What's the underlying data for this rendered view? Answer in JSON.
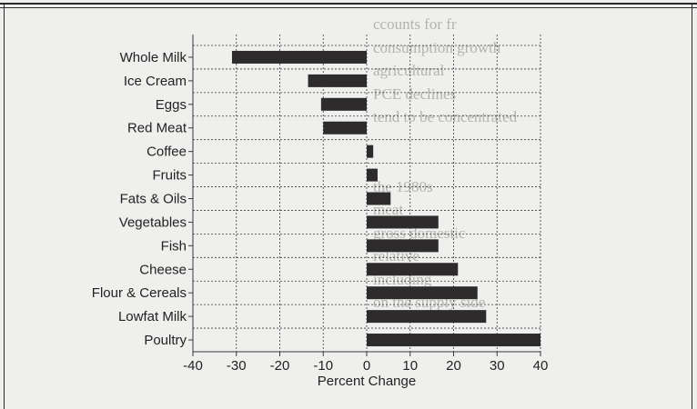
{
  "colors": {
    "bar": "#2e2b2c",
    "grid": "#3a3a3a",
    "text": "#222222",
    "background": "#efefed",
    "bleed_text": "#b3b3b0"
  },
  "bleed_through_lines": [
    "ccounts for fr",
    "consumption growth",
    "agricultural",
    "PCE declines",
    "tend to be concentrated",
    "",
    "",
    "the 1980s",
    "meat",
    "gross domestic",
    "relative",
    "including",
    "on the supply side"
  ],
  "chart_data": {
    "type": "bar",
    "orientation": "horizontal",
    "title": "",
    "xlabel": "Percent Change",
    "ylabel": "",
    "xlim": [
      -40,
      40
    ],
    "xticks": [
      -40,
      -30,
      -20,
      -10,
      0,
      10,
      20,
      30,
      40
    ],
    "xtick_labels": [
      "-40",
      "-30",
      "-20",
      "-10",
      "0",
      "10",
      "20",
      "30",
      "40"
    ],
    "grid": true,
    "legend": "none",
    "categories": [
      "Whole Milk",
      "Ice Cream",
      "Eggs",
      "Red Meat",
      "Coffee",
      "Fruits",
      "Fats & Oils",
      "Vegetables",
      "Fish",
      "Cheese",
      "Flour & Cereals",
      "Lowfat Milk",
      "Poultry"
    ],
    "values": [
      -31,
      -13.5,
      -10.5,
      -10,
      1.5,
      2.5,
      5.5,
      16.5,
      16.5,
      21,
      25.5,
      27.5,
      40
    ]
  }
}
